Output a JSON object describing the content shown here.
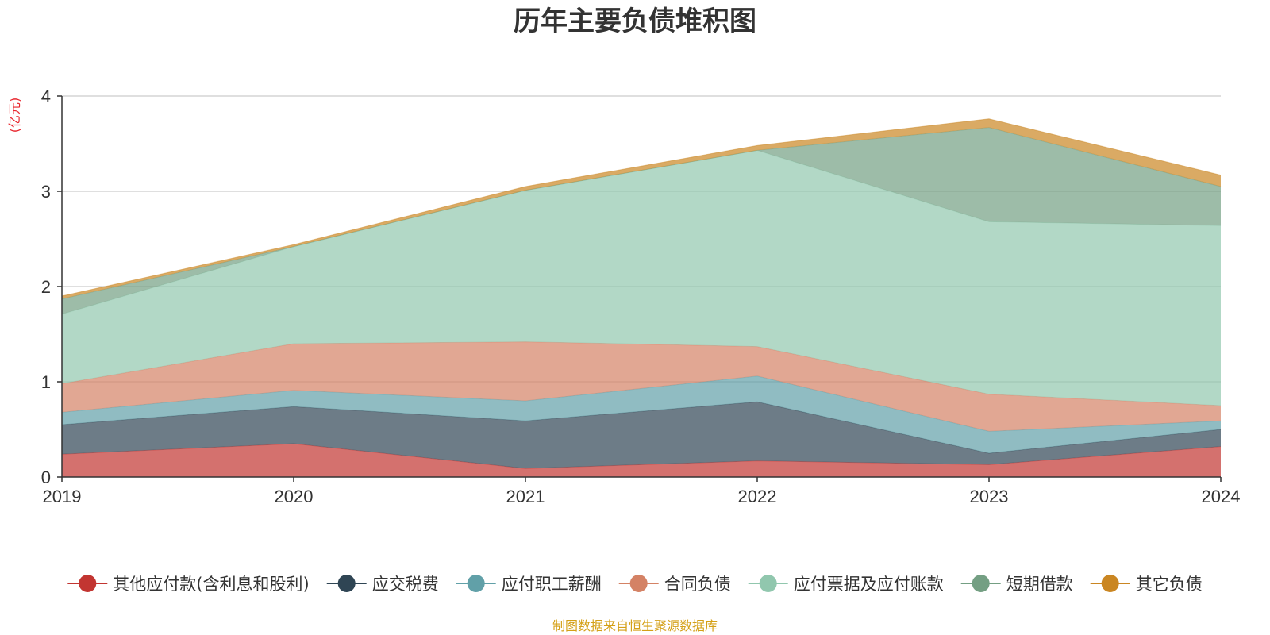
{
  "chart_data": {
    "type": "area",
    "stacked": true,
    "title": "历年主要负债堆积图",
    "ylabel": "(亿元)",
    "x": [
      "2019",
      "2020",
      "2021",
      "2022",
      "2023",
      "2024"
    ],
    "ylim": [
      0,
      4
    ],
    "yticks": [
      "0",
      "1",
      "2",
      "3",
      "4"
    ],
    "grid": true,
    "legend_position": "bottom",
    "series": [
      {
        "name": "其他应付款(含利息和股利)",
        "color": "#c23531",
        "values": [
          0.24,
          0.35,
          0.09,
          0.17,
          0.13,
          0.32
        ]
      },
      {
        "name": "应交税费",
        "color": "#2f4554",
        "values": [
          0.31,
          0.39,
          0.5,
          0.62,
          0.12,
          0.18
        ]
      },
      {
        "name": "应付职工薪酬",
        "color": "#61a0a8",
        "values": [
          0.13,
          0.17,
          0.21,
          0.27,
          0.23,
          0.09
        ]
      },
      {
        "name": "合同负债",
        "color": "#d48265",
        "values": [
          0.3,
          0.49,
          0.62,
          0.31,
          0.39,
          0.16
        ]
      },
      {
        "name": "应付票据及应付账款",
        "color": "#91c7ae",
        "values": [
          0.73,
          1.02,
          1.59,
          2.06,
          1.81,
          1.89
        ]
      },
      {
        "name": "短期借款",
        "color": "#749f83",
        "values": [
          0.16,
          0.0,
          0.0,
          0.0,
          0.99,
          0.41
        ]
      },
      {
        "name": "其它负债",
        "color": "#ca8622",
        "values": [
          0.03,
          0.02,
          0.04,
          0.05,
          0.09,
          0.12
        ]
      }
    ]
  },
  "footer": {
    "source": "制图数据来自恒生聚源数据库"
  }
}
